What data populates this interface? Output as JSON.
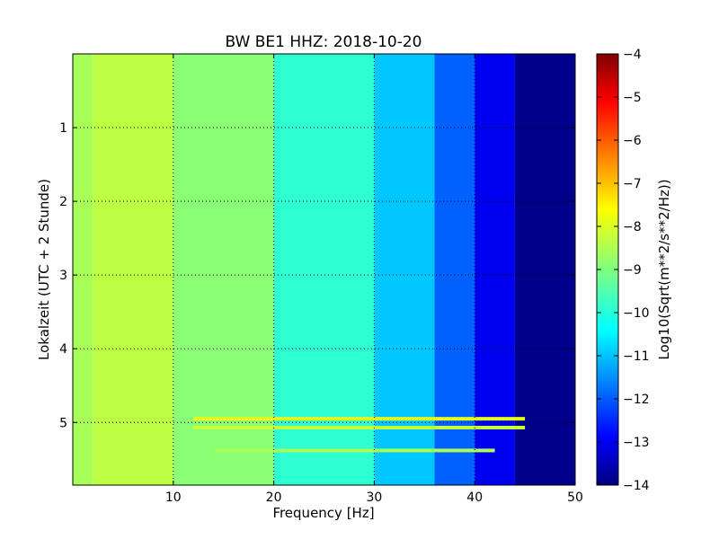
{
  "chart_data": {
    "type": "heatmap",
    "title": "BW BE1 HHZ: 2018-10-20",
    "xlabel": "Frequency [Hz]",
    "ylabel": "Lokalzeit (UTC + 2 Stunde)",
    "colorbar_label": "Log10(Sqrt(m**2/s**2/Hz))",
    "xlim": [
      0,
      50
    ],
    "ylim": [
      5.85,
      0
    ],
    "x_ticks": [
      10,
      20,
      30,
      40,
      50
    ],
    "y_ticks": [
      1,
      2,
      3,
      4,
      5
    ],
    "clim": [
      -14,
      -4
    ],
    "colorbar_ticks": [
      -14,
      -13,
      -12,
      -11,
      -10,
      -9,
      -8,
      -7,
      -6,
      -5,
      -4
    ],
    "colormap": "jet",
    "grid": true,
    "regions": [
      {
        "freq": [
          0,
          2
        ],
        "level": -8.6
      },
      {
        "freq": [
          2,
          10
        ],
        "level": -8.4
      },
      {
        "freq": [
          10,
          20
        ],
        "level": -8.9
      },
      {
        "freq": [
          20,
          30
        ],
        "level": -9.8
      },
      {
        "freq": [
          30,
          36
        ],
        "level": -10.8
      },
      {
        "freq": [
          36,
          40
        ],
        "level": -11.8
      },
      {
        "freq": [
          40,
          44
        ],
        "level": -12.9
      },
      {
        "freq": [
          44,
          50
        ],
        "level": -13.9
      }
    ],
    "line_features": [
      {
        "time": 4.95,
        "freq": [
          12,
          45
        ],
        "level": -8.0
      },
      {
        "time": 5.07,
        "freq": [
          12,
          45
        ],
        "level": -8.3
      },
      {
        "time": 5.38,
        "freq": [
          14,
          42
        ],
        "level": -8.6
      }
    ]
  }
}
